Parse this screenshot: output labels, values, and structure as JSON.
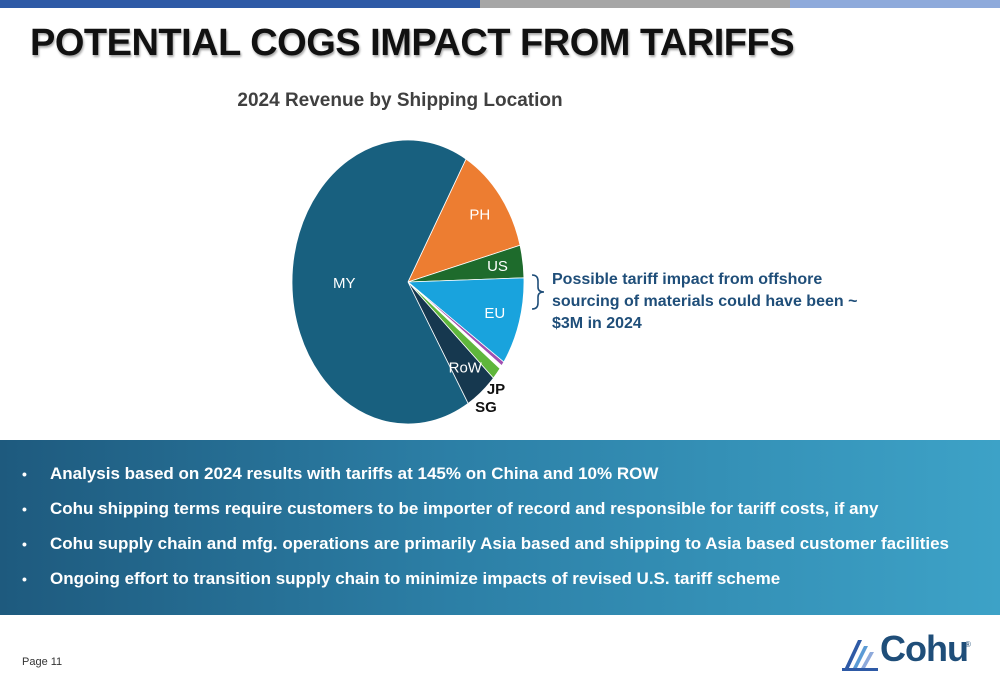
{
  "colors": {
    "topbar": [
      "#2e5aa6",
      "#a6a6a6",
      "#8eaadb"
    ],
    "callout_text": "#1f4e79"
  },
  "slide": {
    "title": "POTENTIAL COGS IMPACT FROM TARIFFS"
  },
  "chart_data": {
    "type": "pie",
    "title": "2024 Revenue by Shipping Location",
    "slices": [
      {
        "label": "PH",
        "value": 12.5,
        "color": "#ed7d31",
        "label_inside": true
      },
      {
        "label": "US",
        "value": 3.7,
        "color": "#1e6b2c",
        "label_inside": true
      },
      {
        "label": "EU",
        "value": 10.0,
        "color": "#19a3dd",
        "label_inside": true
      },
      {
        "label": "",
        "value": 0.5,
        "color": "#a04fb0",
        "label_inside": false
      },
      {
        "label": "JP",
        "value": 0.4,
        "color": "#ffffff",
        "label_inside": false
      },
      {
        "label": "SG",
        "value": 1.4,
        "color": "#5fb63c",
        "label_inside": false
      },
      {
        "label": "RoW",
        "value": 4.5,
        "color": "#16384f",
        "label_inside": true
      },
      {
        "label": "MY",
        "value": 67.0,
        "color": "#18607f",
        "label_inside": true
      }
    ],
    "start_angle_deg": 0,
    "direction": "clockwise"
  },
  "callout": {
    "text": "Possible tariff impact from offshore sourcing of materials could have been ~ $3M in 2024"
  },
  "bullets": [
    "Analysis based on 2024 results with tariffs at 145% on China and 10% ROW",
    "Cohu shipping terms require customers to be importer of record and responsible for tariff costs, if any",
    "Cohu supply chain and mfg. operations are primarily Asia based and shipping to Asia based customer facilities",
    "Ongoing effort to transition supply chain to minimize impacts of revised U.S. tariff scheme"
  ],
  "bullet_marker": "•",
  "footer": {
    "page": "Page 11",
    "logo_text": "Cohu",
    "logo_reg": "®",
    "logo_icon": "cohu-triangle-logo-icon"
  }
}
